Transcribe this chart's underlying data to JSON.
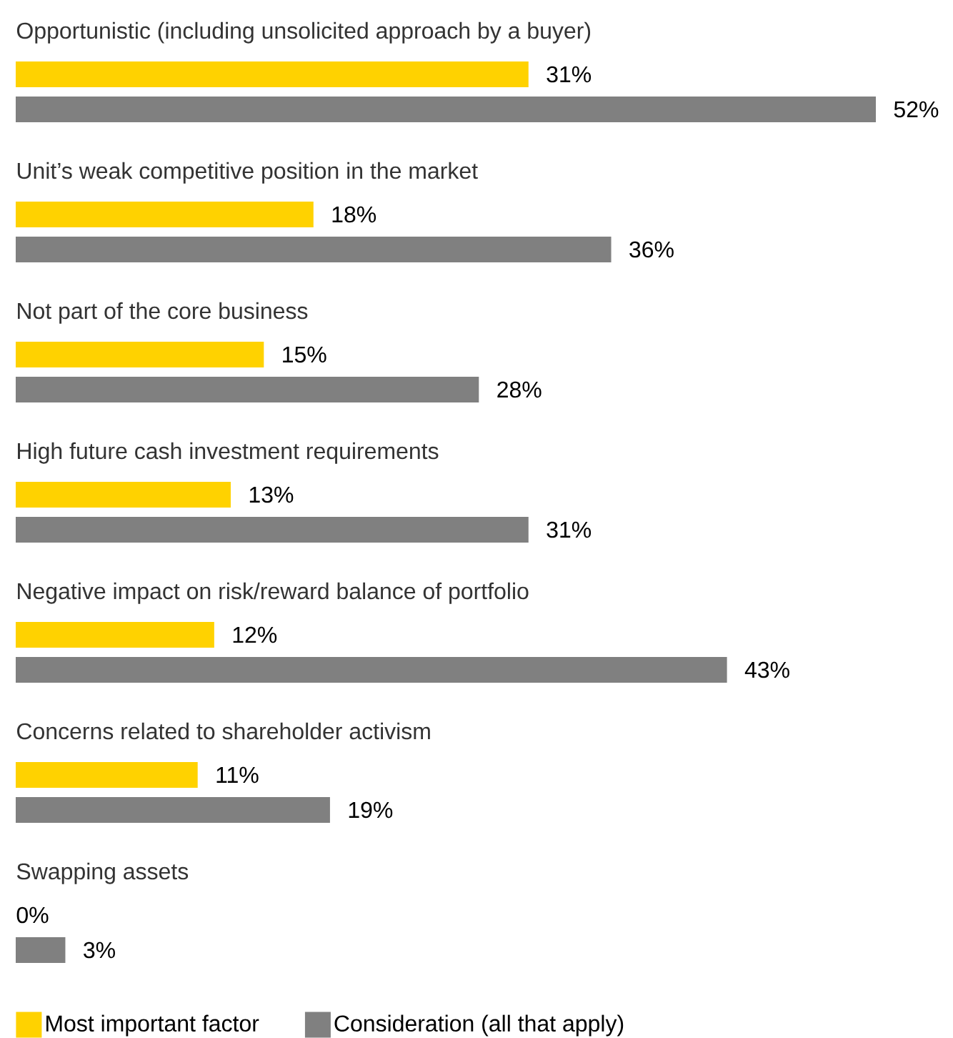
{
  "chart_data": {
    "type": "bar",
    "orientation": "horizontal",
    "legend": "bottom left",
    "categories": [
      "Opportunistic (including unsolicited approach by a buyer)",
      "Unit’s weak competitive position in the market",
      "Not part of the core business",
      "High future cash investment requirements",
      "Negative impact on risk/reward balance of portfolio",
      "Concerns related to shareholder activism",
      "Swapping assets"
    ],
    "series": [
      {
        "name": "Most important factor",
        "color": "#ffd200",
        "values": [
          31,
          18,
          15,
          13,
          12,
          11,
          0
        ],
        "value_labels": [
          "31%",
          "18%",
          "15%",
          "13%",
          "12%",
          "11%",
          "0%"
        ]
      },
      {
        "name": "Consideration (all that apply)",
        "color": "#808080",
        "values": [
          52,
          36,
          28,
          31,
          43,
          19,
          3
        ],
        "value_labels": [
          "52%",
          "36%",
          "28%",
          "31%",
          "43%",
          "19%",
          "3%"
        ]
      }
    ]
  }
}
